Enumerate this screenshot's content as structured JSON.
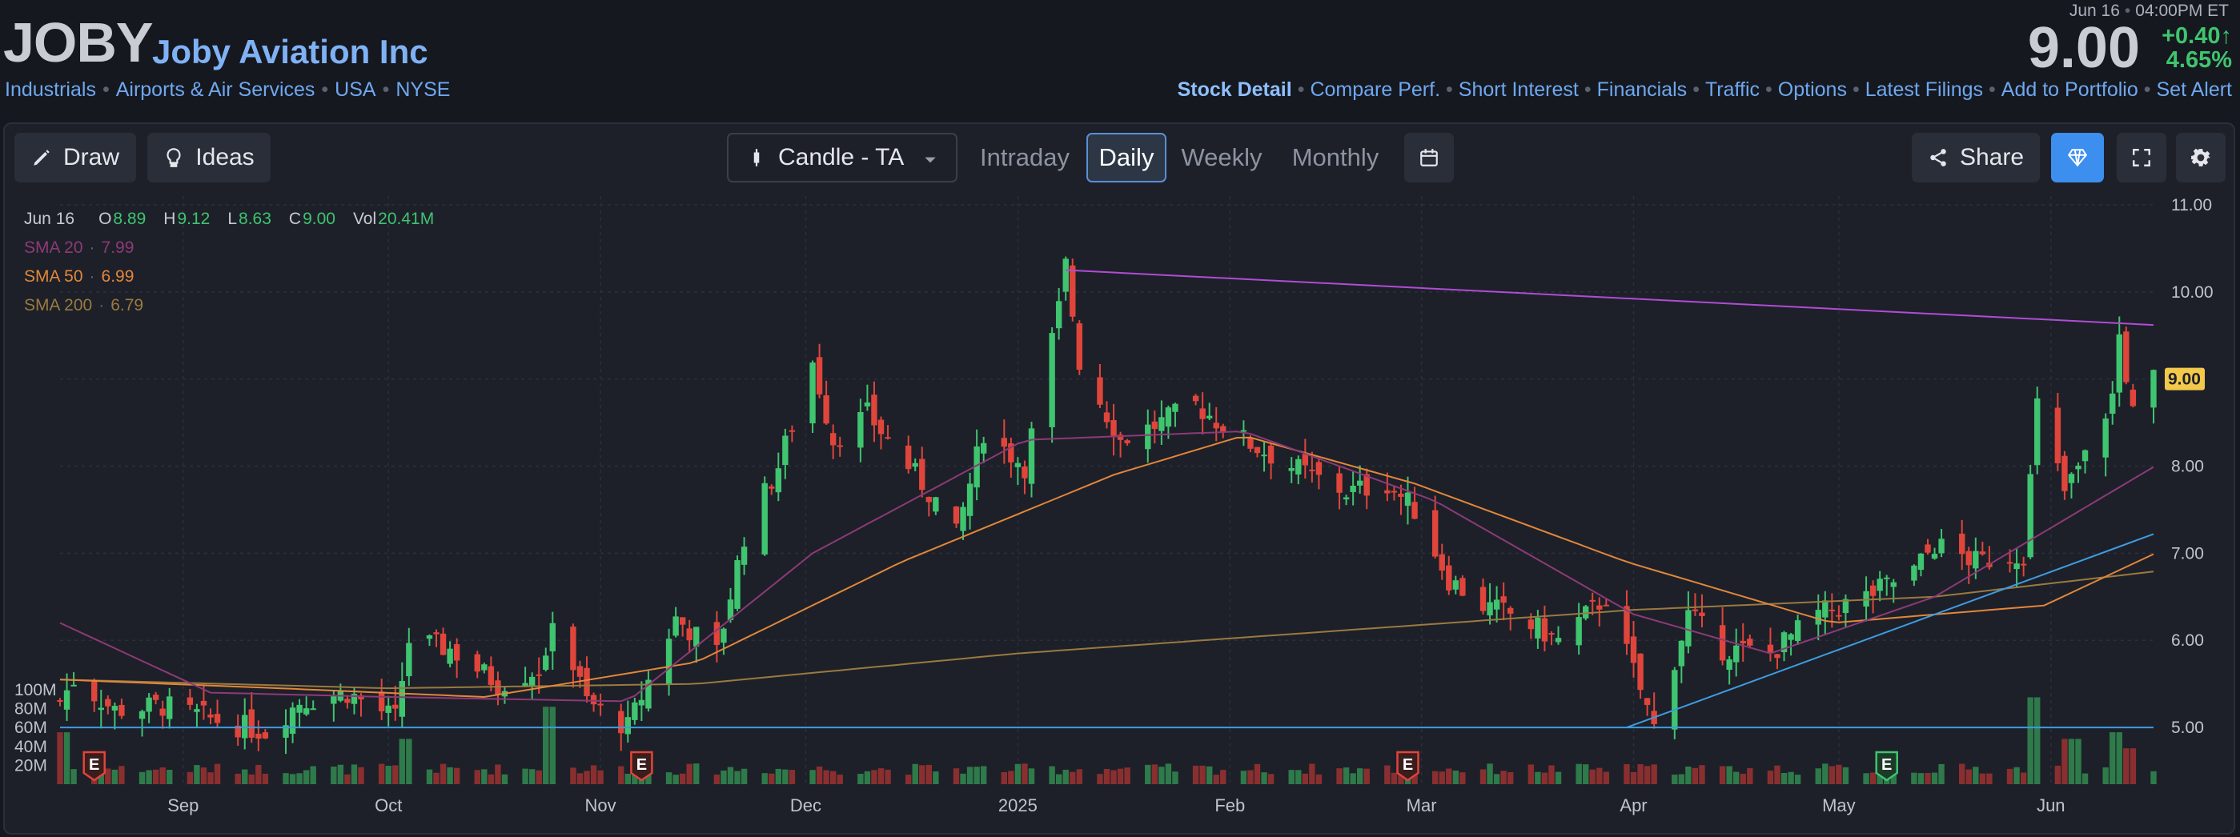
{
  "header": {
    "ticker": "JOBY",
    "company": "Joby Aviation Inc",
    "tags": [
      "Industrials",
      "Airports & Air Services",
      "USA",
      "NYSE"
    ],
    "date": "Jun 16",
    "time": "04:00PM ET",
    "price": "9.00",
    "change": "+0.40",
    "change_arrow": "↑",
    "change_pct": "4.65%",
    "nav_links": [
      "Stock Detail",
      "Compare Perf.",
      "Short Interest",
      "Financials",
      "Traffic",
      "Options",
      "Latest Filings",
      "Add to Portfolio",
      "Set Alert"
    ]
  },
  "toolbar": {
    "draw_label": "Draw",
    "ideas_label": "Ideas",
    "chart_type_label": "Candle - TA",
    "tabs": [
      "Intraday",
      "Daily",
      "Weekly",
      "Monthly"
    ],
    "active_tab": "Daily",
    "share_label": "Share",
    "icons": [
      "pencil-icon",
      "lightbulb-icon",
      "candle-icon",
      "chevron-down-icon",
      "calendar-icon",
      "share-icon",
      "diamond-icon",
      "fullscreen-icon",
      "gear-icon"
    ]
  },
  "legend": {
    "date": "Jun 16",
    "o_label": "O",
    "o": "8.89",
    "h_label": "H",
    "h": "9.12",
    "l_label": "L",
    "l": "8.63",
    "c_label": "C",
    "c": "9.00",
    "vol_label": "Vol",
    "vol": "20.41M",
    "sma20_label": "SMA 20",
    "sma20": "7.99",
    "sma50_label": "SMA 50",
    "sma50": "6.99",
    "sma200_label": "SMA 200",
    "sma200": "6.79"
  },
  "chart_data": {
    "type": "candlestick",
    "x_range": [
      "2024-08-14",
      "2025-06-16"
    ],
    "month_labels": [
      {
        "label": "Sep",
        "date": "2024-09-01"
      },
      {
        "label": "Oct",
        "date": "2024-10-01"
      },
      {
        "label": "Nov",
        "date": "2024-11-01"
      },
      {
        "label": "Dec",
        "date": "2024-12-01"
      },
      {
        "label": "2025",
        "date": "2025-01-01"
      },
      {
        "label": "Feb",
        "date": "2025-02-01"
      },
      {
        "label": "Mar",
        "date": "2025-03-01"
      },
      {
        "label": "Apr",
        "date": "2025-04-01"
      },
      {
        "label": "May",
        "date": "2025-05-01"
      },
      {
        "label": "Jun",
        "date": "2025-06-01"
      }
    ],
    "y_ticks": [
      "11.00",
      "10.00",
      "9.00",
      "8.00",
      "7.00",
      "6.00",
      "5.00"
    ],
    "ylim": [
      4.9,
      11.1
    ],
    "volume_ticks": [
      "100M",
      "80M",
      "60M",
      "40M",
      "20M"
    ],
    "volume_max": 100,
    "last_price_tag": "9.00",
    "earnings_markers": [
      {
        "label": "E",
        "date": "2024-08-19",
        "kind": "miss"
      },
      {
        "label": "E",
        "date": "2024-11-07",
        "kind": "miss"
      },
      {
        "label": "E",
        "date": "2025-02-27",
        "kind": "miss"
      },
      {
        "label": "E",
        "date": "2025-05-08",
        "kind": "beat"
      }
    ],
    "trendlines": [
      {
        "name": "resistance",
        "color": "#b04cd6",
        "from": [
          "2025-01-08",
          10.25
        ],
        "to": [
          "2025-06-16",
          9.62
        ]
      },
      {
        "name": "support",
        "color": "#3f9be0",
        "from": [
          "2024-08-14",
          5.0
        ],
        "to": [
          "2025-06-16",
          5.0
        ]
      },
      {
        "name": "uptrend",
        "color": "#3f9be0",
        "from": [
          "2025-03-31",
          5.0
        ],
        "to": [
          "2025-06-16",
          7.22
        ]
      }
    ],
    "colors": {
      "up": "#3fc46f",
      "down": "#e0453b",
      "sma20": "#8d3a78",
      "sma50": "#e2873a",
      "sma200": "#9a7a3f",
      "grid": "#2b2f3a",
      "price_tag": "#f3c94b"
    },
    "key_closes": [
      [
        "2024-08-14",
        5.3
      ],
      [
        "2024-08-16",
        5.55
      ],
      [
        "2024-08-22",
        5.2
      ],
      [
        "2024-08-29",
        5.25
      ],
      [
        "2024-09-05",
        5.1
      ],
      [
        "2024-09-13",
        4.95
      ],
      [
        "2024-09-18",
        5.3
      ],
      [
        "2024-09-25",
        5.4
      ],
      [
        "2024-10-02",
        5.1
      ],
      [
        "2024-10-04",
        6.0
      ],
      [
        "2024-10-10",
        5.9
      ],
      [
        "2024-10-17",
        5.5
      ],
      [
        "2024-10-24",
        5.7
      ],
      [
        "2024-10-25",
        6.3
      ],
      [
        "2024-10-30",
        5.3
      ],
      [
        "2024-11-05",
        5.0
      ],
      [
        "2024-11-12",
        6.25
      ],
      [
        "2024-11-18",
        5.85
      ],
      [
        "2024-11-22",
        7.2
      ],
      [
        "2024-11-27",
        8.0
      ],
      [
        "2024-12-02",
        9.2
      ],
      [
        "2024-12-05",
        8.3
      ],
      [
        "2024-12-10",
        8.6
      ],
      [
        "2024-12-16",
        8.0
      ],
      [
        "2024-12-20",
        7.6
      ],
      [
        "2024-12-23",
        7.2
      ],
      [
        "2024-12-27",
        8.4
      ],
      [
        "2025-01-02",
        8.0
      ],
      [
        "2025-01-07",
        9.8
      ],
      [
        "2025-01-08",
        10.3
      ],
      [
        "2025-01-10",
        9.2
      ],
      [
        "2025-01-16",
        8.3
      ],
      [
        "2025-01-22",
        8.5
      ],
      [
        "2025-01-27",
        8.7
      ],
      [
        "2025-02-03",
        8.3
      ],
      [
        "2025-02-10",
        8.0
      ],
      [
        "2025-02-18",
        7.7
      ],
      [
        "2025-02-24",
        7.8
      ],
      [
        "2025-02-28",
        7.5
      ],
      [
        "2025-03-05",
        6.7
      ],
      [
        "2025-03-10",
        6.4
      ],
      [
        "2025-03-14",
        6.3
      ],
      [
        "2025-03-21",
        6.0
      ],
      [
        "2025-03-28",
        6.5
      ],
      [
        "2025-04-04",
        5.0
      ],
      [
        "2025-04-09",
        6.3
      ],
      [
        "2025-04-14",
        5.9
      ],
      [
        "2025-04-21",
        5.85
      ],
      [
        "2025-04-28",
        6.3
      ],
      [
        "2025-05-05",
        6.5
      ],
      [
        "2025-05-12",
        6.8
      ],
      [
        "2025-05-15",
        7.1
      ],
      [
        "2025-05-21",
        6.9
      ],
      [
        "2025-05-28",
        7.0
      ],
      [
        "2025-05-30",
        8.7
      ],
      [
        "2025-06-03",
        7.7
      ],
      [
        "2025-06-06",
        8.1
      ],
      [
        "2025-06-10",
        8.8
      ],
      [
        "2025-06-11",
        9.5
      ],
      [
        "2025-06-13",
        8.6
      ],
      [
        "2025-06-16",
        9.0
      ]
    ],
    "sma20": [
      [
        "2024-08-14",
        6.2
      ],
      [
        "2024-09-05",
        5.4
      ],
      [
        "2024-10-01",
        5.35
      ],
      [
        "2024-11-05",
        5.3
      ],
      [
        "2024-12-02",
        7.0
      ],
      [
        "2025-01-02",
        8.3
      ],
      [
        "2025-02-03",
        8.4
      ],
      [
        "2025-03-03",
        7.6
      ],
      [
        "2025-04-01",
        6.3
      ],
      [
        "2025-04-21",
        5.85
      ],
      [
        "2025-05-15",
        6.5
      ],
      [
        "2025-06-16",
        7.99
      ]
    ],
    "sma50": [
      [
        "2024-08-14",
        5.55
      ],
      [
        "2024-09-15",
        5.45
      ],
      [
        "2024-10-15",
        5.35
      ],
      [
        "2024-11-15",
        5.75
      ],
      [
        "2024-12-15",
        6.9
      ],
      [
        "2025-01-15",
        7.9
      ],
      [
        "2025-02-03",
        8.35
      ],
      [
        "2025-02-28",
        7.8
      ],
      [
        "2025-03-31",
        6.9
      ],
      [
        "2025-04-30",
        6.2
      ],
      [
        "2025-05-31",
        6.4
      ],
      [
        "2025-06-16",
        6.99
      ]
    ],
    "sma200": [
      [
        "2024-08-14",
        5.55
      ],
      [
        "2024-10-01",
        5.45
      ],
      [
        "2024-11-15",
        5.5
      ],
      [
        "2025-01-01",
        5.85
      ],
      [
        "2025-02-15",
        6.1
      ],
      [
        "2025-04-01",
        6.35
      ],
      [
        "2025-05-15",
        6.5
      ],
      [
        "2025-06-16",
        6.79
      ]
    ],
    "volume_spikes": [
      [
        "2024-08-14",
        55
      ],
      [
        "2024-10-04",
        48
      ],
      [
        "2024-10-25",
        82
      ],
      [
        "2025-05-30",
        92
      ],
      [
        "2025-06-04",
        48
      ],
      [
        "2025-06-11",
        55
      ],
      [
        "2025-06-13",
        38
      ]
    ]
  }
}
